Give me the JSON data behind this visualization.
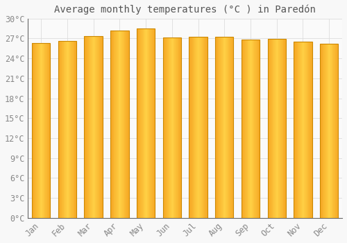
{
  "months": [
    "Jan",
    "Feb",
    "Mar",
    "Apr",
    "May",
    "Jun",
    "Jul",
    "Aug",
    "Sep",
    "Oct",
    "Nov",
    "Dec"
  ],
  "temperatures": [
    26.3,
    26.6,
    27.4,
    28.2,
    28.5,
    27.2,
    27.3,
    27.3,
    26.8,
    26.9,
    26.5,
    26.2
  ],
  "title": "Average monthly temperatures (°C ) in Paredón",
  "bar_color": "#FFC125",
  "bar_edge_color": "#CC8800",
  "background_color": "#F8F8F8",
  "plot_bg_color": "#FAFAFA",
  "grid_color": "#DDDDDD",
  "text_color": "#888888",
  "title_color": "#555555",
  "ylim": [
    0,
    30
  ],
  "ytick_step": 3,
  "title_fontsize": 10,
  "tick_fontsize": 8.5
}
